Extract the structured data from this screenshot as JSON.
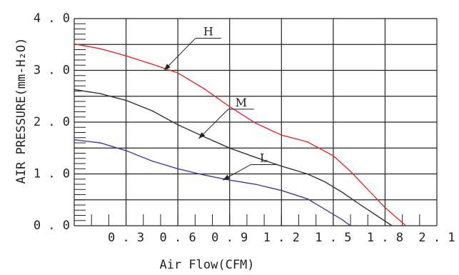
{
  "chart_data": {
    "type": "line",
    "title": "",
    "xlabel": "Air Flow(CFM)",
    "ylabel": "AIR PRESSURE(mm-H₂O)",
    "xlim": [
      0,
      2.1
    ],
    "ylim": [
      0,
      4.0
    ],
    "x_ticks": [
      "0.3",
      "0.6",
      "0.9",
      "1.2",
      "1.5",
      "1.8",
      "2.1"
    ],
    "y_ticks": [
      "0.0",
      "1.0",
      "2.0",
      "3.0",
      "4.0"
    ],
    "grid": true,
    "series": [
      {
        "name": "H",
        "color": "#e02a2a",
        "points": [
          [
            0.0,
            3.51
          ],
          [
            0.15,
            3.42
          ],
          [
            0.3,
            3.28
          ],
          [
            0.45,
            3.12
          ],
          [
            0.6,
            2.95
          ],
          [
            0.75,
            2.65
          ],
          [
            0.9,
            2.3
          ],
          [
            1.05,
            1.98
          ],
          [
            1.2,
            1.75
          ],
          [
            1.35,
            1.62
          ],
          [
            1.5,
            1.35
          ],
          [
            1.6,
            1.05
          ],
          [
            1.7,
            0.7
          ],
          [
            1.8,
            0.35
          ],
          [
            1.92,
            0.0
          ]
        ]
      },
      {
        "name": "M",
        "color": "#333333",
        "points": [
          [
            0.0,
            2.63
          ],
          [
            0.15,
            2.55
          ],
          [
            0.3,
            2.42
          ],
          [
            0.45,
            2.22
          ],
          [
            0.6,
            1.95
          ],
          [
            0.75,
            1.72
          ],
          [
            0.9,
            1.5
          ],
          [
            1.05,
            1.32
          ],
          [
            1.2,
            1.15
          ],
          [
            1.35,
            1.0
          ],
          [
            1.45,
            0.85
          ],
          [
            1.55,
            0.65
          ],
          [
            1.65,
            0.42
          ],
          [
            1.75,
            0.2
          ],
          [
            1.84,
            0.0
          ]
        ]
      },
      {
        "name": "L",
        "color": "#3a3aa0",
        "points": [
          [
            0.0,
            1.66
          ],
          [
            0.15,
            1.6
          ],
          [
            0.3,
            1.45
          ],
          [
            0.45,
            1.25
          ],
          [
            0.6,
            1.1
          ],
          [
            0.75,
            0.98
          ],
          [
            0.9,
            0.88
          ],
          [
            1.05,
            0.8
          ],
          [
            1.2,
            0.68
          ],
          [
            1.35,
            0.52
          ],
          [
            1.45,
            0.32
          ],
          [
            1.55,
            0.12
          ],
          [
            1.6,
            0.0
          ]
        ]
      }
    ],
    "curve_labels": [
      {
        "text": "H",
        "line_anchor": [
          0.52,
          3.0
        ],
        "label_anchor": [
          0.76,
          3.62
        ]
      },
      {
        "text": "M",
        "line_anchor": [
          0.72,
          1.68
        ],
        "label_anchor": [
          0.95,
          2.25
        ]
      },
      {
        "text": "L",
        "line_anchor": [
          0.86,
          0.88
        ],
        "label_anchor": [
          1.08,
          1.18
        ]
      }
    ]
  }
}
